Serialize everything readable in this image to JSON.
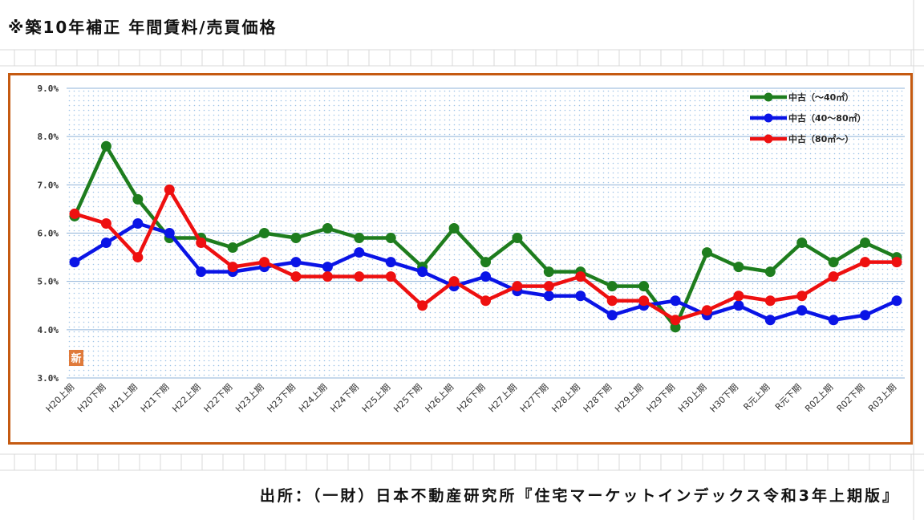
{
  "title": "※築10年補正 年間賃料/売買価格",
  "source": "出所：（一財）日本不動産研究所『住宅マーケットインデックス令和3年上期版』",
  "badge": "新",
  "chart_data": {
    "type": "line",
    "categories": [
      "H20上期",
      "H20下期",
      "H21上期",
      "H21下期",
      "H22上期",
      "H22下期",
      "H23上期",
      "H23下期",
      "H24上期",
      "H24下期",
      "H25上期",
      "H25下期",
      "H26上期",
      "H26下期",
      "H27上期",
      "H27下期",
      "H28上期",
      "H28下期",
      "H29上期",
      "H29下期",
      "H30上期",
      "H30下期",
      "R元上期",
      "R元下期",
      "R02上期",
      "R02下期",
      "R03上期"
    ],
    "ylim": [
      3.0,
      9.0
    ],
    "yticks": [
      "3.0%",
      "4.0%",
      "5.0%",
      "6.0%",
      "7.0%",
      "8.0%",
      "9.0%"
    ],
    "grid": true,
    "legend_position": "top-right",
    "series": [
      {
        "name": "中古（～40㎡）",
        "color": "#1e7d1e",
        "values": [
          6.35,
          7.8,
          6.7,
          5.9,
          5.9,
          5.7,
          6.0,
          5.9,
          6.1,
          5.9,
          5.9,
          5.3,
          6.1,
          5.4,
          5.9,
          5.2,
          5.2,
          4.9,
          4.9,
          4.05,
          5.6,
          5.3,
          5.2,
          5.8,
          5.4,
          5.8,
          5.5
        ]
      },
      {
        "name": "中古（40～80㎡）",
        "color": "#0a14e6",
        "values": [
          5.4,
          5.8,
          6.2,
          6.0,
          5.2,
          5.2,
          5.3,
          5.4,
          5.3,
          5.6,
          5.4,
          5.2,
          4.9,
          5.1,
          4.8,
          4.7,
          4.7,
          4.3,
          4.5,
          4.6,
          4.3,
          4.5,
          4.2,
          4.4,
          4.2,
          4.3,
          4.6
        ]
      },
      {
        "name": "中古（80㎡～）",
        "color": "#ee1010",
        "values": [
          6.4,
          6.2,
          5.5,
          6.9,
          5.8,
          5.3,
          5.4,
          5.1,
          5.1,
          5.1,
          5.1,
          4.5,
          5.0,
          4.6,
          4.9,
          4.9,
          5.1,
          4.6,
          4.6,
          4.2,
          4.4,
          4.7,
          4.6,
          4.7,
          5.1,
          5.4,
          5.4
        ]
      }
    ]
  }
}
